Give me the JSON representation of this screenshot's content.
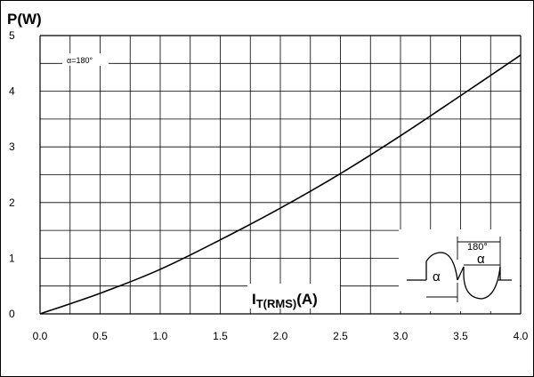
{
  "chart_data": {
    "type": "line",
    "ylabel": "P(W)",
    "xlabel": {
      "main": "I",
      "sub": "T(RMS)",
      "suffix": "(A)"
    },
    "xlim": [
      0,
      4.0
    ],
    "ylim": [
      0,
      5
    ],
    "x_ticks": [
      "0.0",
      "0.5",
      "1.0",
      "1.5",
      "2.0",
      "2.5",
      "3.0",
      "3.5",
      "4.0"
    ],
    "y_ticks": [
      "0",
      "1",
      "2",
      "3",
      "4",
      "5"
    ],
    "grid": true,
    "series": [
      {
        "label": "α=180°",
        "x": [
          0.0,
          0.5,
          1.0,
          1.5,
          2.0,
          2.5,
          3.0,
          3.5,
          4.0
        ],
        "y": [
          0.0,
          0.37,
          0.8,
          1.33,
          1.9,
          2.52,
          3.2,
          3.92,
          4.65
        ]
      }
    ],
    "inset": {
      "angle_180_label": "180°",
      "alpha_label_1": "α",
      "alpha_label_2": "α"
    }
  }
}
